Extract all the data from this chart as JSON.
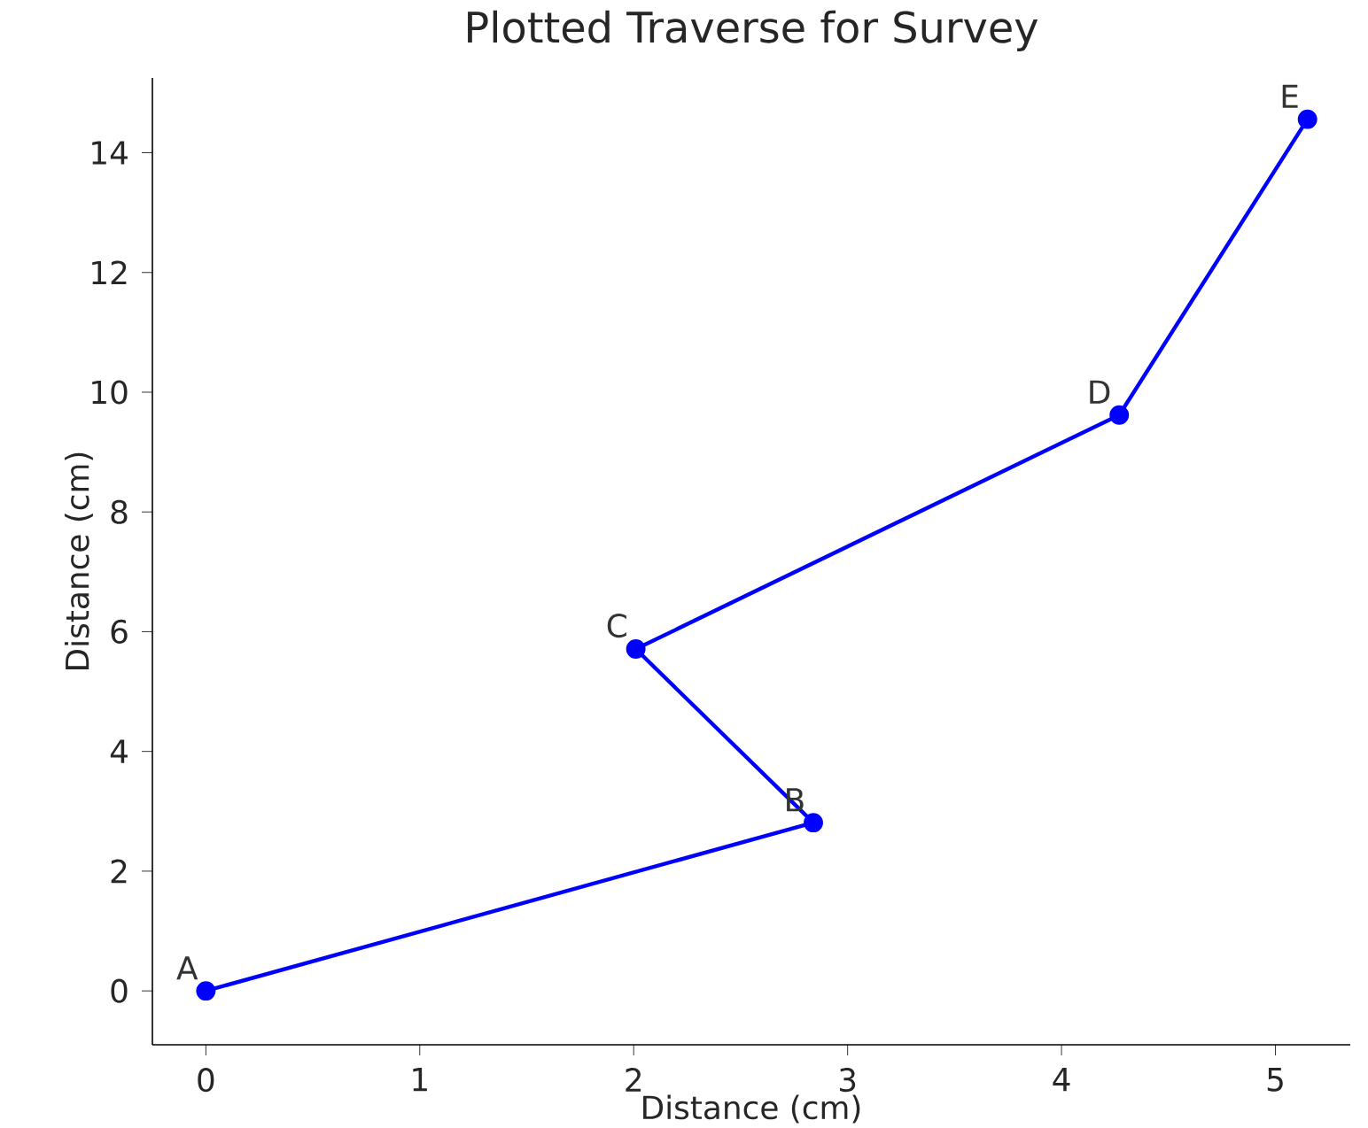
{
  "chart_data": {
    "type": "line",
    "title": "Plotted Traverse for Survey",
    "xlabel": "Distance (cm)",
    "ylabel": "Distance (cm)",
    "x": [
      0,
      2.84,
      2.01,
      4.27,
      5.15
    ],
    "series": [
      {
        "color": "#0000ff",
        "values": [
          0,
          2.81,
          5.71,
          9.62,
          14.56
        ]
      }
    ],
    "marker": "circle",
    "line_style": "solid",
    "grid": false,
    "xlim": [
      -0.25,
      5.35
    ],
    "ylim": [
      -0.9,
      15.25
    ],
    "xticks": [
      0,
      1,
      2,
      3,
      4,
      5
    ],
    "yticks": [
      0,
      2,
      4,
      6,
      8,
      10,
      12,
      14
    ],
    "annotations": [
      {
        "text": "A",
        "x": 0,
        "y": 0
      },
      {
        "text": "B",
        "x": 2.84,
        "y": 2.81
      },
      {
        "text": "C",
        "x": 2.01,
        "y": 5.71
      },
      {
        "text": "D",
        "x": 4.27,
        "y": 9.62
      },
      {
        "text": "E",
        "x": 5.15,
        "y": 14.56
      }
    ]
  }
}
